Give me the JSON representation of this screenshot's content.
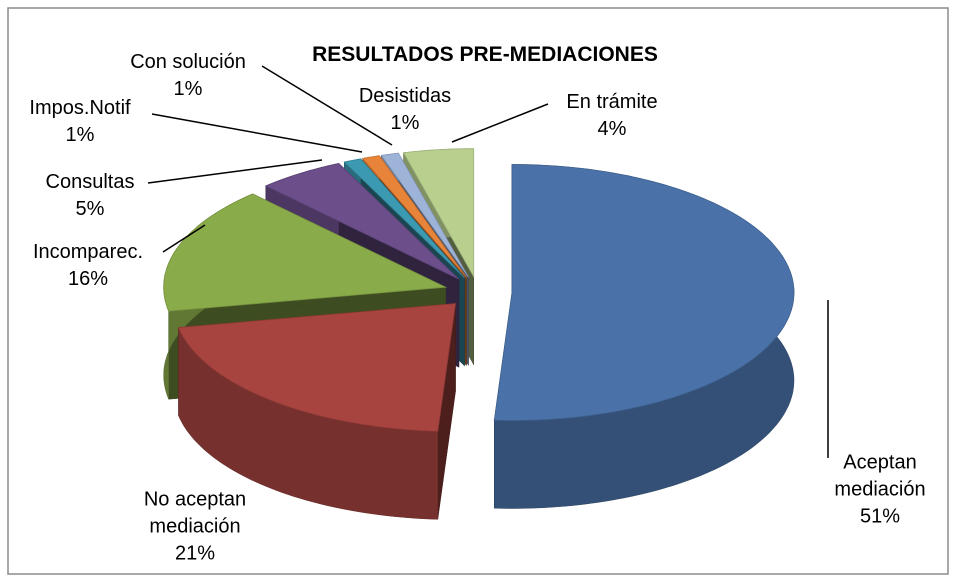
{
  "chart_data": {
    "type": "pie3d",
    "title": "RESULTADOS PRE-MEDIACIONES",
    "categories": [
      "Aceptan mediación",
      "No aceptan mediación",
      "Incomparec.",
      "Consultas",
      "Impos.Notif",
      "Con solución",
      "Desistidas",
      "En trámite"
    ],
    "values": [
      51,
      21,
      16,
      5,
      1,
      1,
      1,
      4
    ],
    "value_labels": [
      "51%",
      "21%",
      "16%",
      "5%",
      "1%",
      "1%",
      "1%",
      "4%"
    ],
    "colors": [
      "#4a72a8",
      "#a84440",
      "#8aab4a",
      "#6b4e8a",
      "#3b9ab2",
      "#e8843a",
      "#9db3d8",
      "#b8cf8e"
    ]
  }
}
